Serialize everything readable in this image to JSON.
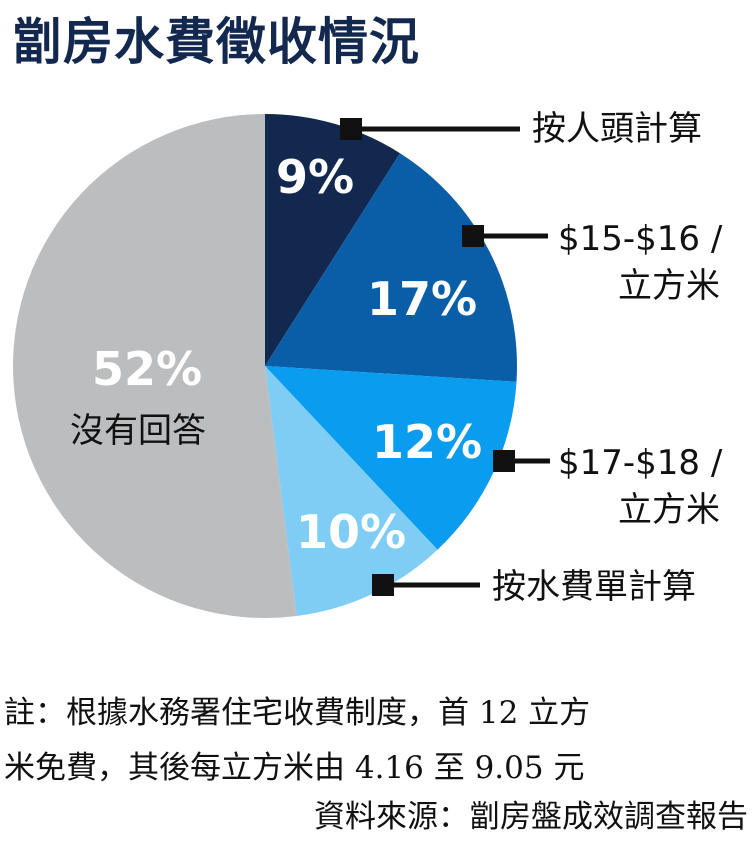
{
  "title": "劏房水費徵收情況",
  "chart_data": {
    "type": "pie",
    "slices": [
      {
        "label": "按人頭計算",
        "percent": "9%",
        "value": 9,
        "color": "#13284f"
      },
      {
        "label": "$15-$16 / 立方米",
        "percent": "17%",
        "value": 17,
        "color": "#0a5ea8"
      },
      {
        "label": "$17-$18 / 立方米",
        "percent": "12%",
        "value": 12,
        "color": "#0a9cee"
      },
      {
        "label": "按水費單計算",
        "percent": "10%",
        "value": 10,
        "color": "#7fcdf4"
      },
      {
        "label": "沒有回答",
        "percent": "52%",
        "value": 52,
        "color": "#bcbdbf"
      }
    ],
    "callouts": {
      "head": "按人頭計算",
      "rate1_line1": "$15-$16 /",
      "rate1_line2": "立方米",
      "rate2_line1": "$17-$18 /",
      "rate2_line2": "立方米",
      "bill": "按水費單計算"
    },
    "no_answer_label": "沒有回答"
  },
  "notes": {
    "line1": "註：根據水務署住宅收費制度，首 12 立方",
    "line2": "米免費，其後每立方米由 4.16 至 9.05 元",
    "line3": "資料來源：劏房盤成效調查報告"
  }
}
